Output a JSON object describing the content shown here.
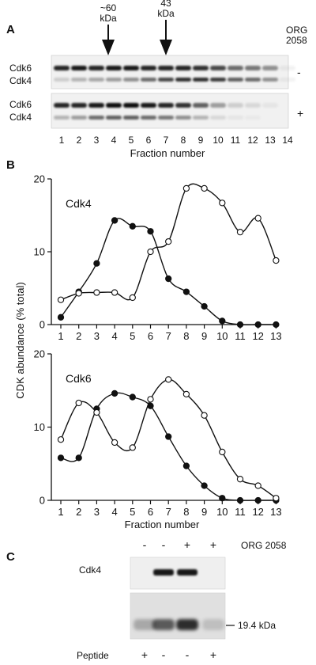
{
  "panel_a": {
    "letter": "A",
    "arrows": [
      {
        "label_line1": "~60",
        "label_line2": "kDa",
        "fraction": 3.5
      },
      {
        "label_line1": "43",
        "label_line2": "kDa",
        "fraction": 7.5
      }
    ],
    "org_label_line1": "ORG",
    "org_label_line2": "2058",
    "blots": [
      {
        "row_labels": [
          "Cdk6",
          "Cdk4"
        ],
        "treatment": "-"
      },
      {
        "row_labels": [
          "Cdk6",
          "Cdk4"
        ],
        "treatment": "+"
      }
    ],
    "lanes": [
      "1",
      "2",
      "3",
      "4",
      "5",
      "6",
      "7",
      "8",
      "9",
      "10",
      "11",
      "12",
      "13",
      "14"
    ],
    "xlabel": "Fraction number"
  },
  "panel_b": {
    "letter": "B",
    "ylabel": "CDK abundance (% total)"
  },
  "chart_data": [
    {
      "type": "line",
      "title": "Cdk4",
      "xlabel": "",
      "ylabel": "CDK abundance (% total)",
      "x": [
        1,
        2,
        3,
        4,
        5,
        6,
        7,
        8,
        9,
        10,
        11,
        12,
        13
      ],
      "x_ticks": [
        "1",
        "2",
        "3",
        "4",
        "5",
        "6",
        "7",
        "8",
        "9",
        "10",
        "11",
        "12",
        "13"
      ],
      "y_ticks": [
        "0",
        "10",
        "20"
      ],
      "ylim": [
        0,
        20
      ],
      "series": [
        {
          "marker": "filled",
          "values": [
            1.0,
            4.5,
            8.4,
            14.3,
            13.5,
            12.8,
            6.3,
            4.5,
            2.5,
            0.5,
            0.0,
            0.0,
            0.0
          ]
        },
        {
          "marker": "open",
          "values": [
            3.4,
            4.3,
            4.4,
            4.4,
            3.7,
            10.0,
            11.4,
            18.7,
            18.7,
            16.7,
            12.7,
            14.6,
            8.8
          ]
        }
      ]
    },
    {
      "type": "line",
      "title": "Cdk6",
      "xlabel": "Fraction number",
      "ylabel": "CDK abundance (% total)",
      "x": [
        1,
        2,
        3,
        4,
        5,
        6,
        7,
        8,
        9,
        10,
        11,
        12,
        13
      ],
      "x_ticks": [
        "1",
        "2",
        "3",
        "4",
        "5",
        "6",
        "7",
        "8",
        "9",
        "10",
        "11",
        "12",
        "13"
      ],
      "y_ticks": [
        "0",
        "10",
        "20"
      ],
      "ylim": [
        0,
        20
      ],
      "series": [
        {
          "marker": "filled",
          "values": [
            5.8,
            5.8,
            12.5,
            14.6,
            14.1,
            12.9,
            8.7,
            4.7,
            2.0,
            0.3,
            0.0,
            0.0,
            0.0
          ]
        },
        {
          "marker": "open",
          "values": [
            8.3,
            13.3,
            12.0,
            7.9,
            7.2,
            13.8,
            16.5,
            14.5,
            11.6,
            6.6,
            2.9,
            2.0,
            0.3
          ]
        }
      ]
    }
  ],
  "panel_c": {
    "letter": "C",
    "treatments": [
      "-",
      "-",
      "+",
      "+"
    ],
    "treatment_label": "ORG 2058",
    "blot_label": "Cdk4",
    "marker_label": "19.4 kDa",
    "peptide_label": "Peptide",
    "peptide_signs": [
      "+",
      "-",
      "-",
      "+"
    ]
  }
}
